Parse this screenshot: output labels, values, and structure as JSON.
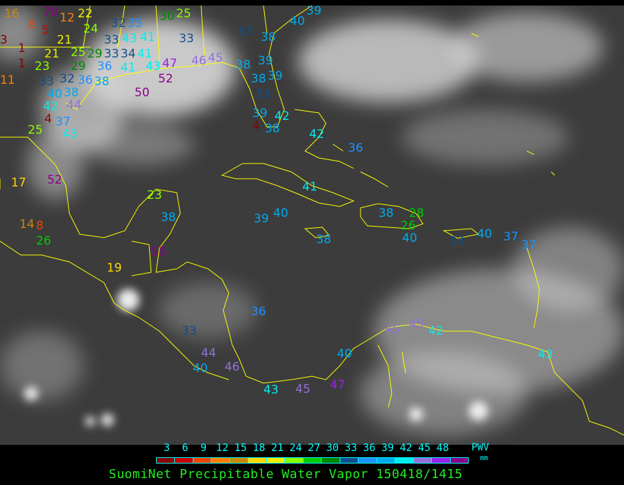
{
  "title": "SuomiNet Precipitable Water Vapor 150418/1415",
  "legend": {
    "unit_label": "PWV",
    "unit_sub": "mm",
    "ticks": [
      "3",
      "6",
      "9",
      "12",
      "15",
      "18",
      "21",
      "24",
      "27",
      "30",
      "33",
      "36",
      "39",
      "42",
      "45",
      "48"
    ],
    "colors": [
      "#8b0000",
      "#cc0000",
      "#ee4400",
      "#ff8000",
      "#cc8800",
      "#ffd700",
      "#eeee00",
      "#88ff00",
      "#00cc00",
      "#008800",
      "#104e8b",
      "#1e90ff",
      "#00aaee",
      "#00eeee",
      "#9370db",
      "#9a20ee",
      "#8b008b"
    ]
  },
  "map": {
    "boundary_color": "#ffff00",
    "stations": [
      "16",
      "70",
      "8",
      "5",
      "3",
      "12",
      "22",
      "24",
      "32",
      "35",
      "30",
      "25",
      "21",
      "25",
      "29",
      "33",
      "43",
      "41",
      "1",
      "21",
      "33",
      "34",
      "41",
      "1",
      "23",
      "29",
      "36",
      "41",
      "43",
      "47",
      "33",
      "46",
      "45",
      "33",
      "38",
      "40",
      "39",
      "11",
      "33",
      "32",
      "38",
      "52",
      "50",
      "40",
      "38",
      "36",
      "44",
      "42",
      "4",
      "37",
      "43",
      "25",
      "39",
      "38",
      "38",
      "39",
      "33",
      "39",
      "42",
      "38",
      "4",
      "42",
      "36",
      "17",
      "52",
      "23",
      "38",
      "41",
      "39",
      "40",
      "38",
      "28",
      "26",
      "38",
      "40",
      "33",
      "40",
      "37",
      "37",
      "14",
      "8",
      "26",
      "55",
      "19",
      "36",
      "33",
      "44",
      "40",
      "46",
      "40",
      "45",
      "45",
      "42",
      "43",
      "45",
      "47",
      "43"
    ]
  }
}
